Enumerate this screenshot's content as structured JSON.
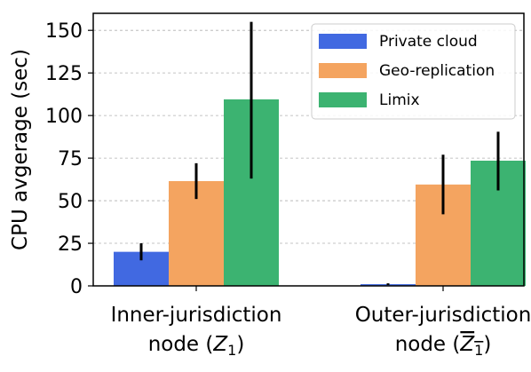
{
  "chart_data": {
    "type": "bar",
    "title": "",
    "xlabel": "",
    "ylabel": "CPU avgerage (sec)",
    "ylim": [
      0,
      160
    ],
    "yticks": [
      0,
      25,
      50,
      75,
      100,
      125,
      150
    ],
    "grid": "y-dashed",
    "legend_placement": "top-right",
    "categories": [
      {
        "line1": "Inner-jurisdiction",
        "line2_prefix": "node (",
        "symbol": "Z",
        "subscript": "1",
        "overline": false,
        "line2_suffix": ")"
      },
      {
        "line1": "Outer-jurisdiction",
        "line2_prefix": "node (",
        "symbol": "Z",
        "subscript": "1",
        "overline": true,
        "line2_suffix": ")"
      }
    ],
    "series": [
      {
        "name": "Private cloud",
        "color": "#4169e1",
        "values": [
          20,
          1
        ],
        "err_low": [
          15,
          0.5
        ],
        "err_high": [
          25,
          1.5
        ]
      },
      {
        "name": "Geo-replication",
        "color": "#f4a460",
        "values": [
          61.5,
          59.5
        ],
        "err_low": [
          51,
          42
        ],
        "err_high": [
          72,
          77
        ]
      },
      {
        "name": "Limix",
        "color": "#3cb371",
        "values": [
          109.5,
          73.5
        ],
        "err_low": [
          63,
          56
        ],
        "err_high": [
          155,
          90.5
        ]
      }
    ]
  }
}
